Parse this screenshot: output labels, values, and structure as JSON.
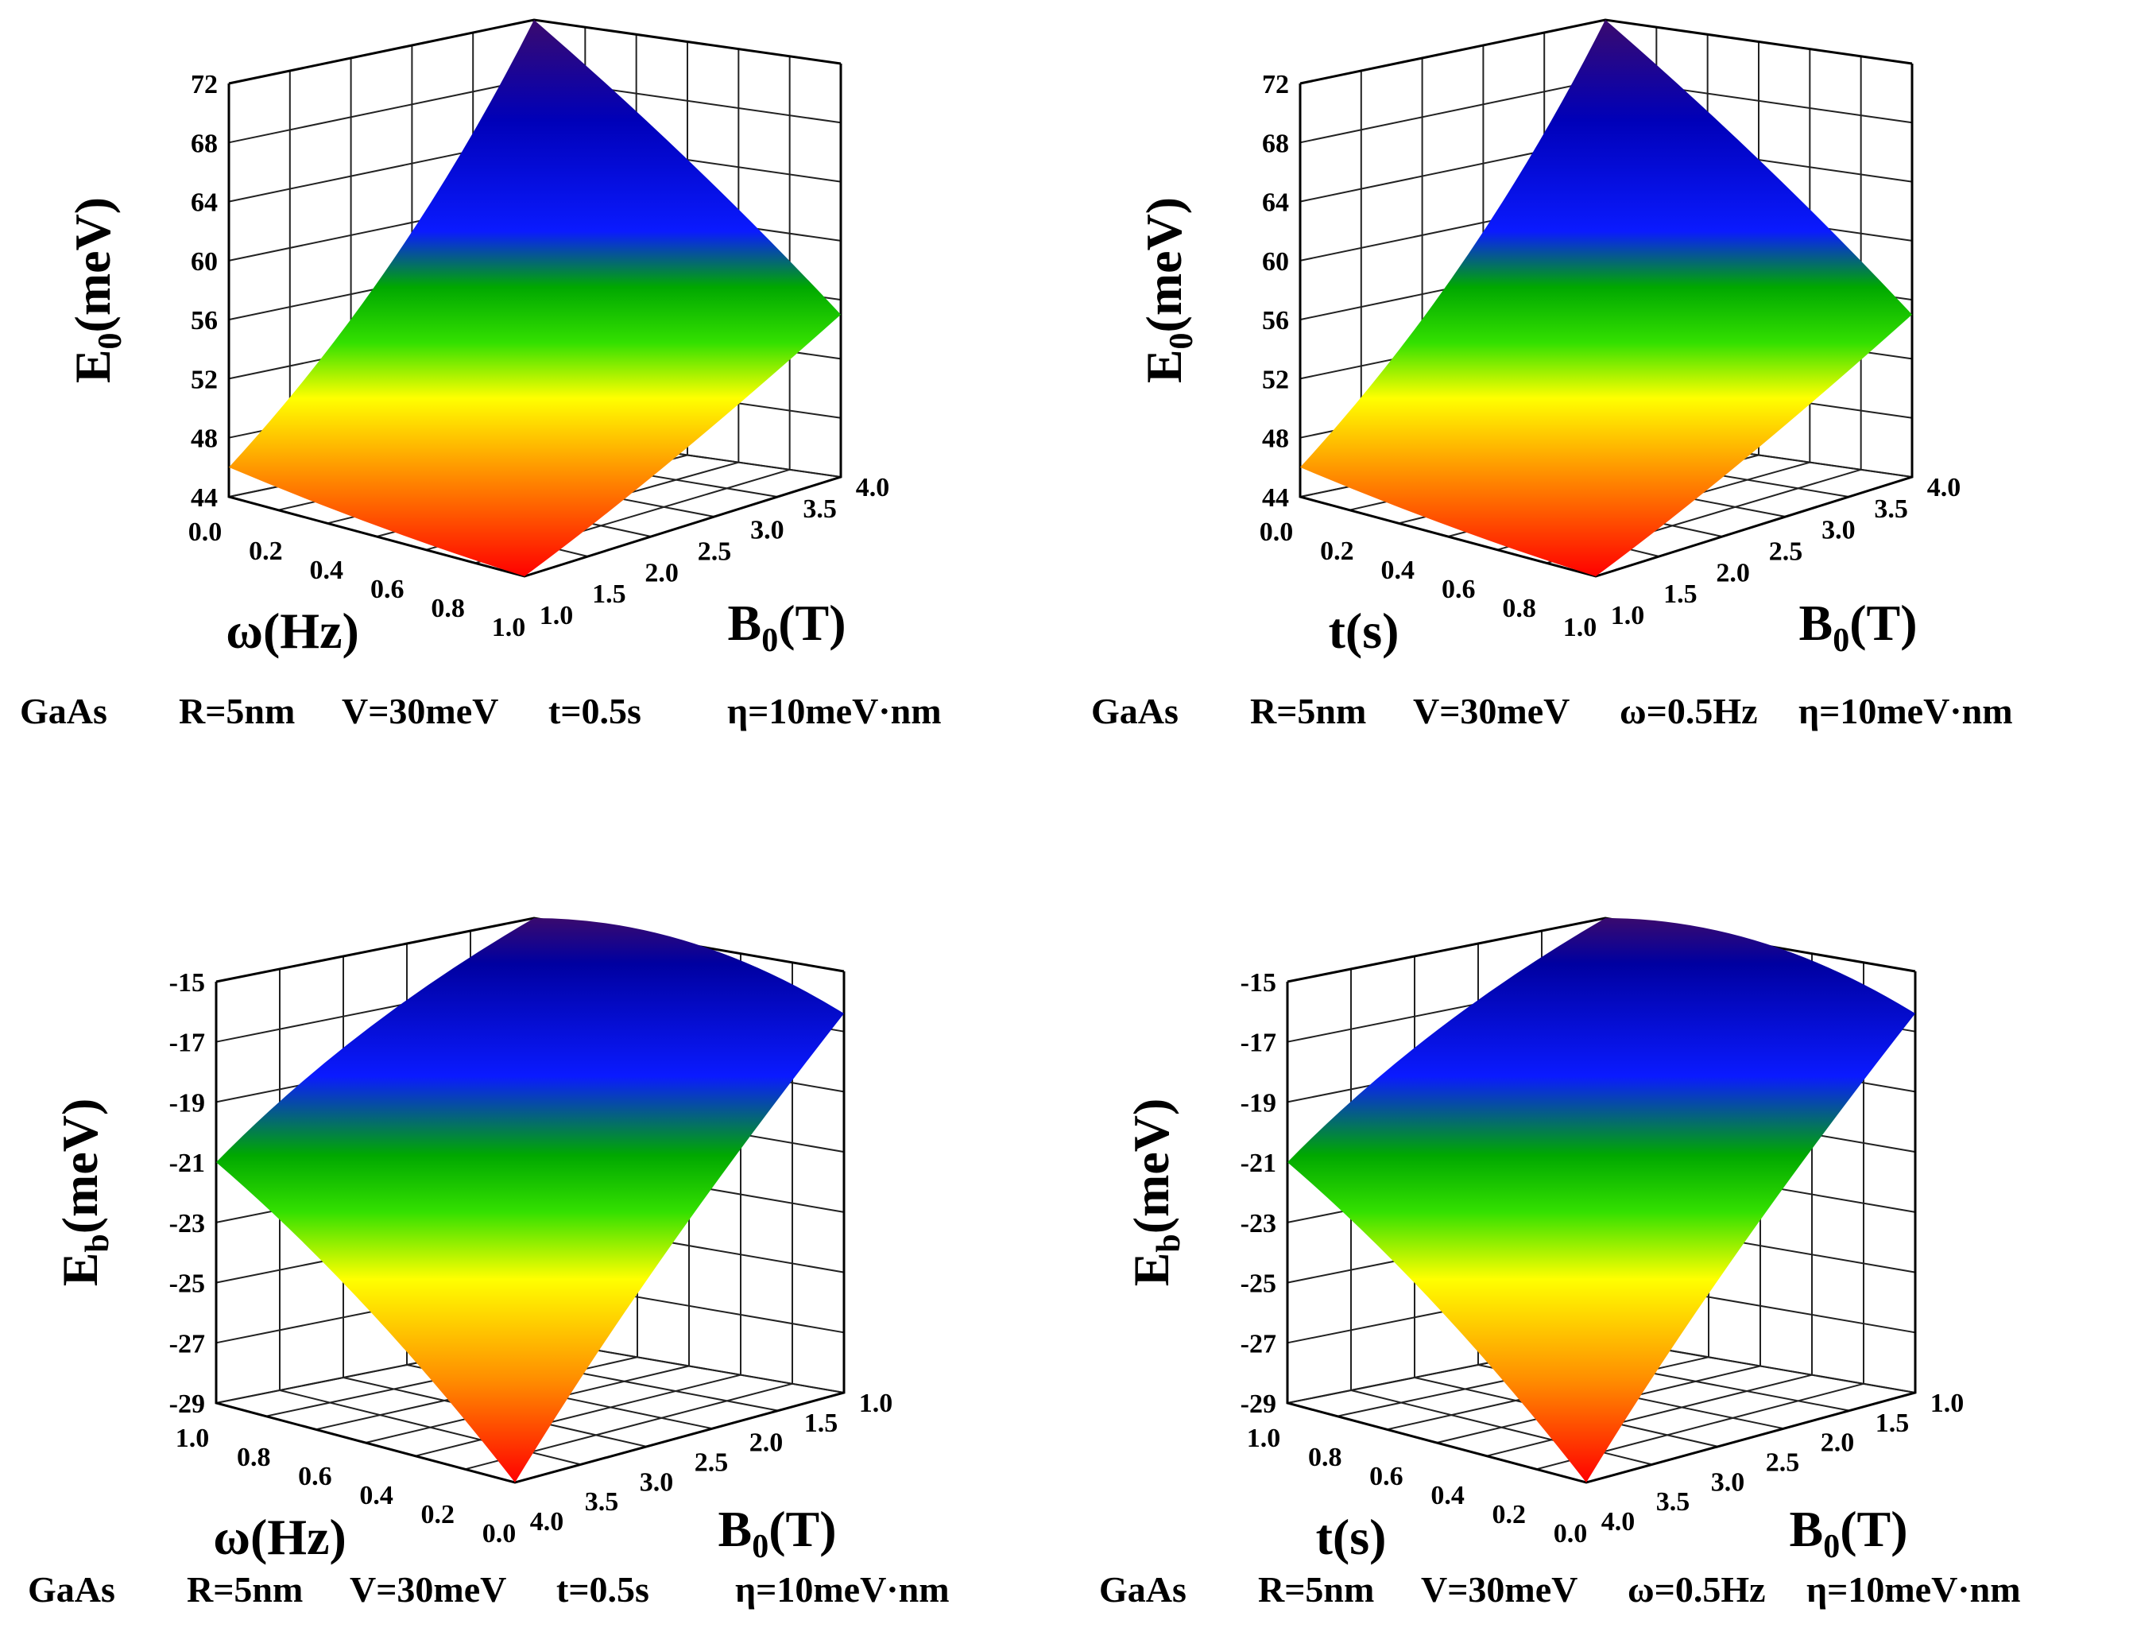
{
  "chart_data": [
    {
      "type": "surface3d",
      "title": "",
      "zlabel": "E",
      "zlabel_sub": "0",
      "zlabel_unit": "(meV)",
      "xlabel": "ω(Hz)",
      "ylabel": "B",
      "ylabel_sub": "0",
      "ylabel_unit": "(T)",
      "z_ticks": [
        "72",
        "68",
        "64",
        "60",
        "56",
        "52",
        "48",
        "44"
      ],
      "x_ticks": [
        "0.0",
        "0.2",
        "0.4",
        "0.6",
        "0.8",
        "1.0"
      ],
      "y_ticks": [
        "1.0",
        "1.5",
        "2.0",
        "2.5",
        "3.0",
        "3.5",
        "4.0"
      ],
      "zlim": [
        44,
        72
      ],
      "xlim": [
        0.0,
        1.0
      ],
      "ylim": [
        1.0,
        4.0
      ],
      "corner_values": {
        "x0_y1": 46,
        "x1_y1": 44,
        "x1_y4": 55,
        "x0_y4": 72
      },
      "caption": [
        "GaAs",
        "R=5nm",
        "V=30meV",
        "t=0.5s",
        "η=10meV·nm"
      ]
    },
    {
      "type": "surface3d",
      "title": "",
      "zlabel": "E",
      "zlabel_sub": "0",
      "zlabel_unit": "(meV)",
      "xlabel": "t(s)",
      "ylabel": "B",
      "ylabel_sub": "0",
      "ylabel_unit": "(T)",
      "z_ticks": [
        "72",
        "68",
        "64",
        "60",
        "56",
        "52",
        "48",
        "44"
      ],
      "x_ticks": [
        "0.0",
        "0.2",
        "0.4",
        "0.6",
        "0.8",
        "1.0"
      ],
      "y_ticks": [
        "1.0",
        "1.5",
        "2.0",
        "2.5",
        "3.0",
        "3.5",
        "4.0"
      ],
      "zlim": [
        44,
        72
      ],
      "xlim": [
        0.0,
        1.0
      ],
      "ylim": [
        1.0,
        4.0
      ],
      "corner_values": {
        "x0_y1": 46,
        "x1_y1": 44,
        "x1_y4": 55,
        "x0_y4": 72
      },
      "caption": [
        "GaAs",
        "R=5nm",
        "V=30meV",
        "ω=0.5Hz",
        "η=10meV·nm"
      ]
    },
    {
      "type": "surface3d",
      "title": "",
      "zlabel": "E",
      "zlabel_sub": "b",
      "zlabel_unit": "(meV)",
      "xlabel": "ω(Hz)",
      "ylabel": "B",
      "ylabel_sub": "0",
      "ylabel_unit": "(T)",
      "z_ticks": [
        "-15",
        "-17",
        "-19",
        "-21",
        "-23",
        "-25",
        "-27",
        "-29"
      ],
      "x_ticks": [
        "1.0",
        "0.8",
        "0.6",
        "0.4",
        "0.2",
        "0.0"
      ],
      "y_ticks": [
        "4.0",
        "3.5",
        "3.0",
        "2.5",
        "2.0",
        "1.5",
        "1.0"
      ],
      "zlim": [
        -29,
        -15
      ],
      "xlim": [
        1.0,
        0.0
      ],
      "ylim": [
        4.0,
        1.0
      ],
      "corner_values": {
        "x1_y4": -21,
        "x0_y4": -29,
        "x0_y1": -16.4,
        "x1_y1": -15
      },
      "caption": [
        "GaAs",
        "R=5nm",
        "V=30meV",
        "t=0.5s",
        "η=10meV·nm"
      ]
    },
    {
      "type": "surface3d",
      "title": "",
      "zlabel": "E",
      "zlabel_sub": "b",
      "zlabel_unit": "(meV)",
      "xlabel": "t(s)",
      "ylabel": "B",
      "ylabel_sub": "0",
      "ylabel_unit": "(T)",
      "z_ticks": [
        "-15",
        "-17",
        "-19",
        "-21",
        "-23",
        "-25",
        "-27",
        "-29"
      ],
      "x_ticks": [
        "1.0",
        "0.8",
        "0.6",
        "0.4",
        "0.2",
        "0.0"
      ],
      "y_ticks": [
        "4.0",
        "3.5",
        "3.0",
        "2.5",
        "2.0",
        "1.5",
        "1.0"
      ],
      "zlim": [
        -29,
        -15
      ],
      "xlim": [
        1.0,
        0.0
      ],
      "ylim": [
        4.0,
        1.0
      ],
      "corner_values": {
        "x1_y4": -21,
        "x0_y4": -29,
        "x0_y1": -16.4,
        "x1_y1": -15
      },
      "caption": [
        "GaAs",
        "R=5nm",
        "V=30meV",
        "ω=0.5Hz",
        "η=10meV·nm"
      ]
    }
  ]
}
